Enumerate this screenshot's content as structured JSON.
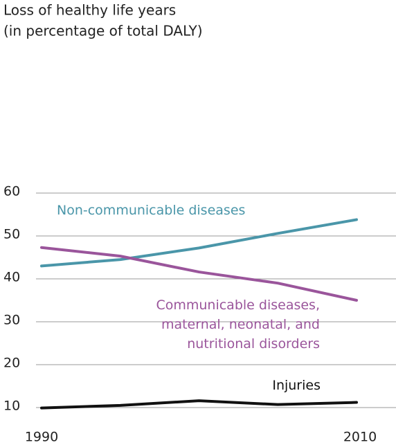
{
  "chart_data": {
    "type": "line",
    "title": "Loss of healthy life years",
    "subtitle": "(in percentage of total DALY)",
    "x": [
      1990,
      1995,
      2000,
      2005,
      2010
    ],
    "xlim": [
      1990,
      2010
    ],
    "xticks": [
      1990,
      2010
    ],
    "ylim": [
      10,
      60
    ],
    "yticks": [
      10,
      20,
      30,
      40,
      50,
      60
    ],
    "grid": true,
    "series": [
      {
        "name": "Non-communicable diseases",
        "color": "#4a96a9",
        "values": [
          43,
          44.5,
          47.2,
          50.6,
          53.8
        ]
      },
      {
        "name": "Communicable diseases, maternal, neonatal, and nutritional disorders",
        "color": "#9a559b",
        "values": [
          47.3,
          45.3,
          41.6,
          39,
          35
        ]
      },
      {
        "name": "Injuries",
        "color": "#111111",
        "values": [
          9.9,
          10.5,
          11.6,
          10.7,
          11.2
        ]
      }
    ]
  }
}
